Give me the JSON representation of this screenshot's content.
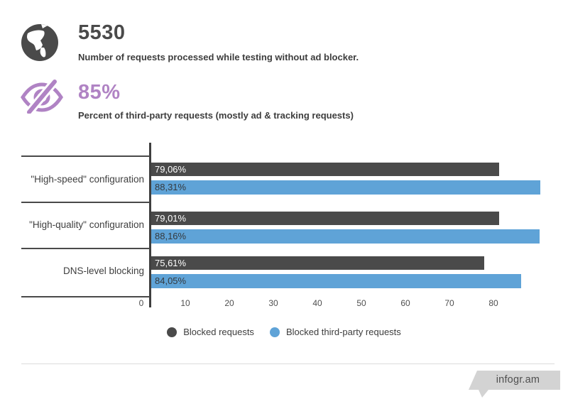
{
  "stats": [
    {
      "icon": "globe-icon",
      "value": "5530",
      "description": "Number of requests processed while testing without ad blocker.",
      "color": "#4a4a4a"
    },
    {
      "icon": "hidden-eye-icon",
      "value": "85%",
      "description": "Percent of third-party requests (mostly ad & tracking requests)",
      "color": "#b083c4"
    }
  ],
  "chart_data": {
    "type": "bar",
    "orientation": "horizontal",
    "categories": [
      "\"High-speed\" configuration",
      "\"High-quality\" configuration",
      "DNS-level blocking"
    ],
    "series": [
      {
        "name": "Blocked requests",
        "color": "#4a4a4a",
        "label_color": "#ffffff",
        "values": [
          79.06,
          79.01,
          75.61
        ],
        "labels": [
          "79,06%",
          "79,01%",
          "75,61%"
        ]
      },
      {
        "name": "Blocked third-party requests",
        "color": "#5fa3d7",
        "label_color": "#35393d",
        "values": [
          88.31,
          88.16,
          84.05
        ],
        "labels": [
          "88,31%",
          "88,16%",
          "84,05%"
        ]
      }
    ],
    "x_ticks": [
      0,
      10,
      20,
      30,
      40,
      50,
      60,
      70,
      80
    ],
    "xlim": [
      0,
      95
    ],
    "value_suffix": "%",
    "decimal_separator": ",",
    "grid": false,
    "legend_position": "bottom-center"
  },
  "footer": {
    "brand": "infogr.am"
  }
}
